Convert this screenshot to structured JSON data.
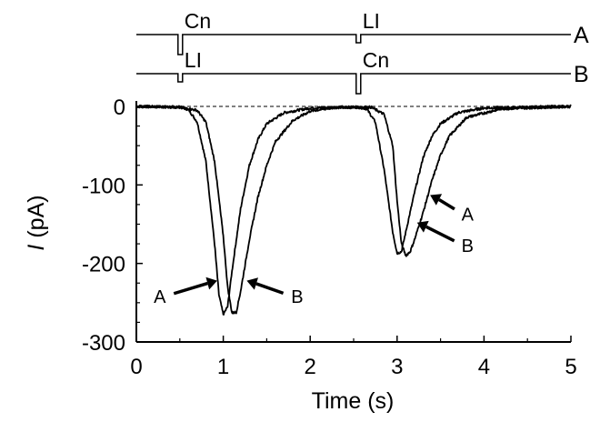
{
  "chart_data": {
    "type": "line",
    "xlabel": "Time (s)",
    "ylabel_italic": "I",
    "ylabel_rest": " (pA)",
    "xlim": [
      0,
      5
    ],
    "ylim": [
      -300,
      0
    ],
    "x_ticks": [
      0,
      1,
      2,
      3,
      4,
      5
    ],
    "x_tick_labels": [
      "0",
      "1",
      "2",
      "3",
      "4",
      "5"
    ],
    "y_ticks": [
      0,
      -100,
      -200,
      -300
    ],
    "y_tick_labels": [
      "0",
      "-100",
      "-200",
      "-300"
    ],
    "zero_line": "dashed",
    "grid": false,
    "series": [
      {
        "name": "A",
        "points": [
          [
            0.0,
            0
          ],
          [
            0.5,
            -1
          ],
          [
            0.6,
            -4
          ],
          [
            0.7,
            -20
          ],
          [
            0.8,
            -70
          ],
          [
            0.9,
            -175
          ],
          [
            0.95,
            -240
          ],
          [
            1.0,
            -265
          ],
          [
            1.05,
            -255
          ],
          [
            1.1,
            -210
          ],
          [
            1.2,
            -130
          ],
          [
            1.3,
            -75
          ],
          [
            1.4,
            -42
          ],
          [
            1.5,
            -22
          ],
          [
            1.7,
            -8
          ],
          [
            2.0,
            -2
          ],
          [
            2.55,
            -1
          ],
          [
            2.65,
            -3
          ],
          [
            2.75,
            -20
          ],
          [
            2.85,
            -80
          ],
          [
            2.95,
            -160
          ],
          [
            3.0,
            -187
          ],
          [
            3.05,
            -185
          ],
          [
            3.1,
            -160
          ],
          [
            3.2,
            -110
          ],
          [
            3.3,
            -65
          ],
          [
            3.4,
            -38
          ],
          [
            3.5,
            -22
          ],
          [
            3.7,
            -8
          ],
          [
            4.0,
            -2
          ],
          [
            5.0,
            0
          ]
        ]
      },
      {
        "name": "B",
        "points": [
          [
            0.0,
            0
          ],
          [
            0.5,
            -1
          ],
          [
            0.7,
            -5
          ],
          [
            0.8,
            -20
          ],
          [
            0.9,
            -70
          ],
          [
            1.0,
            -165
          ],
          [
            1.05,
            -230
          ],
          [
            1.1,
            -263
          ],
          [
            1.15,
            -262
          ],
          [
            1.2,
            -235
          ],
          [
            1.3,
            -170
          ],
          [
            1.4,
            -115
          ],
          [
            1.5,
            -75
          ],
          [
            1.6,
            -45
          ],
          [
            1.8,
            -18
          ],
          [
            2.0,
            -6
          ],
          [
            2.3,
            -1
          ],
          [
            2.7,
            -1
          ],
          [
            2.85,
            -10
          ],
          [
            2.95,
            -50
          ],
          [
            3.0,
            -120
          ],
          [
            3.05,
            -175
          ],
          [
            3.1,
            -190
          ],
          [
            3.15,
            -185
          ],
          [
            3.2,
            -170
          ],
          [
            3.3,
            -135
          ],
          [
            3.4,
            -95
          ],
          [
            3.5,
            -62
          ],
          [
            3.6,
            -38
          ],
          [
            3.8,
            -14
          ],
          [
            4.2,
            -3
          ],
          [
            5.0,
            0
          ]
        ]
      }
    ],
    "annotations": [
      {
        "text": "A",
        "x": 0.27,
        "y": -242,
        "arrow_to": [
          0.93,
          -222
        ]
      },
      {
        "text": "B",
        "x": 1.85,
        "y": -242,
        "arrow_to": [
          1.27,
          -222
        ]
      },
      {
        "text": "A",
        "x": 3.81,
        "y": -137,
        "arrow_to": [
          3.38,
          -113
        ]
      },
      {
        "text": "B",
        "x": 3.81,
        "y": -177,
        "arrow_to": [
          3.23,
          -148
        ]
      }
    ],
    "protocol": [
      {
        "label": "A",
        "events": [
          {
            "text": "Cn",
            "t": 0.5,
            "size": "large"
          },
          {
            "text": "LI",
            "t": 2.55,
            "size": "small"
          }
        ]
      },
      {
        "label": "B",
        "events": [
          {
            "text": "LI",
            "t": 0.5,
            "size": "small"
          },
          {
            "text": "Cn",
            "t": 2.55,
            "size": "large"
          }
        ]
      }
    ]
  }
}
